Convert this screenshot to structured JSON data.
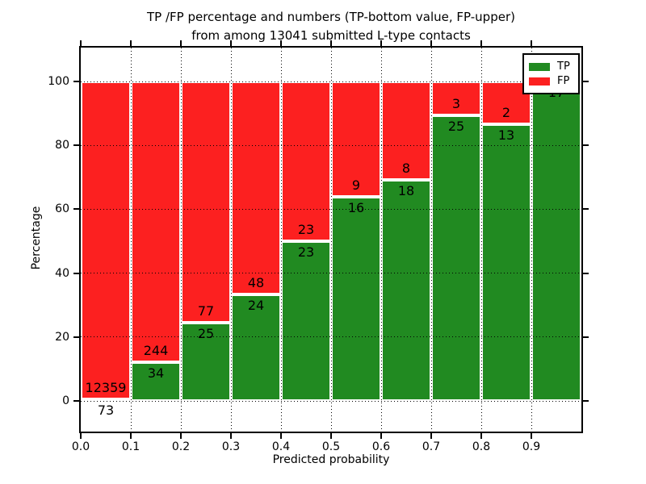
{
  "chart_data": {
    "type": "bar",
    "stacked": true,
    "normalized_to_percent": true,
    "title_line1": "TP /FP percentage and numbers (TP-bottom value, FP-upper)",
    "title_line2": "from among 13041 submitted L-type contacts",
    "xlabel": "Predicted probability",
    "ylabel": "Percentage",
    "x_tick_labels": [
      "0.0",
      "0.1",
      "0.2",
      "0.3",
      "0.4",
      "0.5",
      "0.6",
      "0.7",
      "0.8",
      "0.9"
    ],
    "y_ticks": [
      0,
      20,
      40,
      60,
      80,
      100
    ],
    "xlim": [
      0.0,
      1.0
    ],
    "ylim": [
      -11,
      110.5
    ],
    "grid": "dotted",
    "legend": {
      "position": "upper right",
      "items": [
        {
          "label": "TP",
          "color": "#218a21"
        },
        {
          "label": "FP",
          "color": "#fc2020"
        }
      ]
    },
    "colors": {
      "tp": "#218a21",
      "fp": "#fc2020",
      "bar_edge": "#ffffff"
    },
    "bins": [
      {
        "x_range": [
          0.0,
          0.1
        ],
        "tp": 73,
        "fp": 12359,
        "tp_pct": 0.6
      },
      {
        "x_range": [
          0.1,
          0.2
        ],
        "tp": 34,
        "fp": 244,
        "tp_pct": 12.2
      },
      {
        "x_range": [
          0.2,
          0.3
        ],
        "tp": 25,
        "fp": 77,
        "tp_pct": 24.5
      },
      {
        "x_range": [
          0.3,
          0.4
        ],
        "tp": 24,
        "fp": 48,
        "tp_pct": 33.3
      },
      {
        "x_range": [
          0.4,
          0.5
        ],
        "tp": 23,
        "fp": 23,
        "tp_pct": 50.0
      },
      {
        "x_range": [
          0.5,
          0.6
        ],
        "tp": 16,
        "fp": 9,
        "tp_pct": 64.0
      },
      {
        "x_range": [
          0.6,
          0.7
        ],
        "tp": 18,
        "fp": 8,
        "tp_pct": 69.2
      },
      {
        "x_range": [
          0.7,
          0.8
        ],
        "tp": 25,
        "fp": 3,
        "tp_pct": 89.3
      },
      {
        "x_range": [
          0.8,
          0.9
        ],
        "tp": 13,
        "fp": 2,
        "tp_pct": 86.7
      },
      {
        "x_range": [
          0.9,
          1.0
        ],
        "tp": 17,
        "fp": 0,
        "tp_pct": 100.0
      }
    ]
  }
}
